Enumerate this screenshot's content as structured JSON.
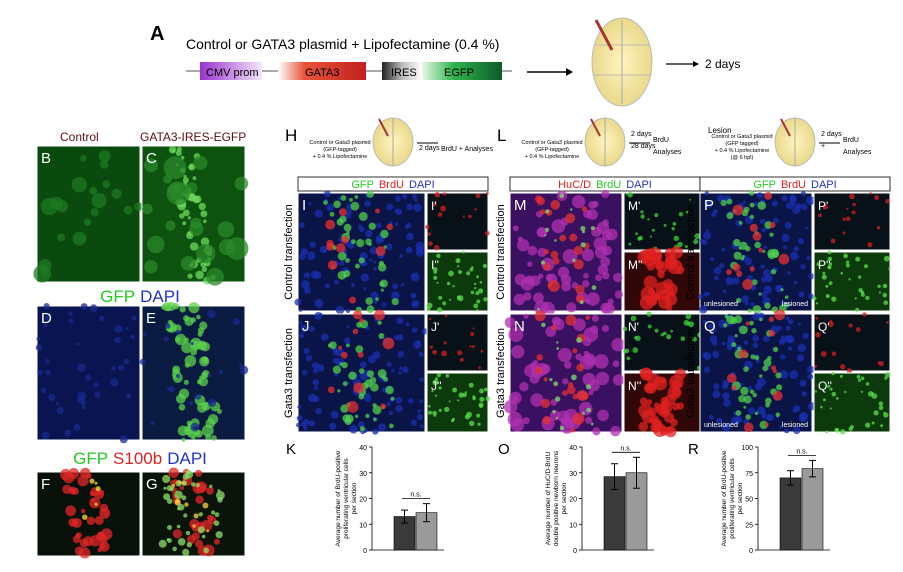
{
  "panel_a": {
    "letter": "A",
    "title": "Control or GATA3 plasmid + Lipofectamine (0.4 %)",
    "construct": [
      "CMV prom",
      "GATA3",
      "IRES",
      "EGFP"
    ],
    "duration": "2 days"
  },
  "left": {
    "col_labels": [
      "Control",
      "GATA3-IRES-EGFP"
    ],
    "stain_rows": [
      [
        {
          "text": "GFP",
          "color": "#22cc22"
        },
        {
          "text": "DAPI",
          "color": "#2233cc"
        }
      ],
      [
        {
          "text": "GFP",
          "color": "#22cc22"
        },
        {
          "text": "S100b",
          "color": "#dd2222"
        },
        {
          "text": "DAPI",
          "color": "#2233cc"
        }
      ]
    ],
    "panels": [
      "B",
      "C",
      "D",
      "E",
      "F",
      "G"
    ]
  },
  "experiments": [
    {
      "letter": "H",
      "pre": null,
      "schematic": [
        "Control or Gata3 plasmid",
        "(GFP-tagged)",
        "+ 0.4 % Lipofectamine"
      ],
      "steps": [
        "2 days",
        "BrdU + Analyses"
      ],
      "stains": [
        {
          "text": "GFP",
          "color": "#22cc22"
        },
        {
          "text": "BrdU",
          "color": "#dd2222"
        },
        {
          "text": "DAPI",
          "color": "#2233cc"
        }
      ],
      "rows": [
        "Control transfection",
        "Gata3 transfection"
      ],
      "panels": [
        [
          "I",
          "I'",
          "I''"
        ],
        [
          "J",
          "J'",
          "J''"
        ]
      ],
      "annotations": [],
      "graph_letter": "K"
    },
    {
      "letter": "L",
      "pre": null,
      "schematic": [
        "Control or Gata3 plasmid",
        "(GFP-tagged)",
        "+ 0.4 % Lipofectamine"
      ],
      "steps": [
        "2 days",
        "BrdU",
        "28 days",
        "Analyses"
      ],
      "stains": [
        {
          "text": "HuC/D",
          "color": "#dd2222"
        },
        {
          "text": "BrdU",
          "color": "#22cc22"
        },
        {
          "text": "DAPI",
          "color": "#2233cc"
        }
      ],
      "rows": [
        "Control transfection",
        "Gata3 transfection"
      ],
      "panels": [
        [
          "M",
          "M'",
          "M''"
        ],
        [
          "N",
          "N'",
          "N''"
        ]
      ],
      "annotations": [],
      "graph_letter": "O"
    },
    {
      "letter": null,
      "pre": "Lesion",
      "schematic": [
        "Control or Gata3 plasmid",
        "(GFP tagged)",
        "+ 0.4 % Lipofectamine",
        "(@ 6 hpl)"
      ],
      "steps": [
        "2 days",
        "BrdU",
        "+",
        "Analyses"
      ],
      "stains": [
        {
          "text": "GFP",
          "color": "#22cc22"
        },
        {
          "text": "BrdU",
          "color": "#dd2222"
        },
        {
          "text": "DAPI",
          "color": "#2233cc"
        }
      ],
      "rows": [
        "Control transfection",
        "Gata3 transfection"
      ],
      "panels": [
        [
          "P",
          "P'",
          "P''"
        ],
        [
          "Q",
          "Q'",
          "Q''"
        ]
      ],
      "annotations": [
        "unlesioned",
        "lesioned"
      ],
      "graph_letter": "R"
    }
  ],
  "chart_data": [
    {
      "type": "bar",
      "ylabel": [
        "Average number of BrdU-positive",
        "proliferating ventricular cells",
        "per section"
      ],
      "values": [
        13,
        14.5
      ],
      "errors": [
        2.5,
        3.5
      ],
      "colors": [
        "#3a3a3a",
        "#9a9a9a"
      ],
      "ylim": [
        0,
        40
      ],
      "yticks": [
        0,
        10,
        20,
        30,
        40
      ],
      "annotation": "n.s."
    },
    {
      "type": "bar",
      "ylabel": [
        "Average number of HuC/D-BrdU",
        "double positive newborn neurons",
        "per section"
      ],
      "values": [
        28.5,
        30
      ],
      "errors": [
        5,
        6
      ],
      "colors": [
        "#3a3a3a",
        "#9a9a9a"
      ],
      "ylim": [
        0,
        40
      ],
      "yticks": [
        0,
        10,
        20,
        30,
        40
      ],
      "annotation": "n.s."
    },
    {
      "type": "bar",
      "ylabel": [
        "Average number of BrdU-positive",
        "proliferating ventricular cells",
        "per section"
      ],
      "values": [
        70,
        79
      ],
      "errors": [
        7,
        8
      ],
      "colors": [
        "#3a3a3a",
        "#9a9a9a"
      ],
      "ylim": [
        0,
        100
      ],
      "yticks": [
        0,
        25,
        50,
        75,
        100
      ],
      "annotation": "n.s."
    }
  ]
}
